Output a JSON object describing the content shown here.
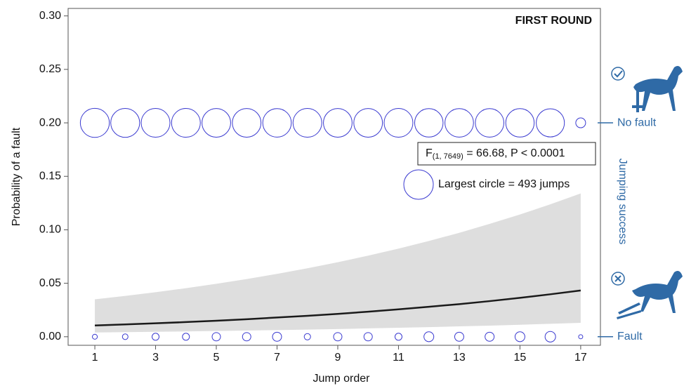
{
  "chart_data": {
    "type": "bubble-fit",
    "title": "FIRST ROUND",
    "x_label": "Jump order",
    "y_label": "Probability of a fault",
    "side_label": "Jumping success",
    "x": [
      1,
      2,
      3,
      4,
      5,
      6,
      7,
      8,
      9,
      10,
      11,
      12,
      13,
      14,
      15,
      16,
      17
    ],
    "fit": {
      "values": [
        0.0105,
        0.0115,
        0.0126,
        0.0137,
        0.015,
        0.0164,
        0.018,
        0.0196,
        0.0214,
        0.0234,
        0.0256,
        0.028,
        0.0305,
        0.0333,
        0.0364,
        0.0397,
        0.0433
      ],
      "lower": [
        0.004,
        0.0043,
        0.0046,
        0.005,
        0.0054,
        0.0058,
        0.0062,
        0.0067,
        0.0072,
        0.0078,
        0.0084,
        0.009,
        0.0097,
        0.0104,
        0.0112,
        0.0121,
        0.013
      ],
      "upper": [
        0.035,
        0.0382,
        0.0416,
        0.0454,
        0.0495,
        0.0539,
        0.0588,
        0.064,
        0.0697,
        0.0758,
        0.0824,
        0.0895,
        0.0972,
        0.1055,
        0.1143,
        0.1238,
        0.134
      ],
      "color": "#1a1a1a",
      "band_color": "#dedede"
    },
    "circles": [
      {
        "name": "No fault",
        "level": 0.2,
        "color": "#3a3ad0",
        "counts": [
          478,
          474,
          470,
          470,
          466,
          466,
          462,
          470,
          466,
          466,
          470,
          458,
          462,
          462,
          458,
          450,
          55
        ]
      },
      {
        "name": "Fault",
        "level": 0,
        "color": "#3a3ad0",
        "counts": [
          14,
          18,
          28,
          28,
          40,
          40,
          47,
          23,
          40,
          40,
          28,
          55,
          47,
          47,
          55,
          63,
          10
        ]
      }
    ],
    "largest_count": 493,
    "legend_label": "Largest circle = 493 jumps",
    "stat": {
      "main": "F",
      "sub": "(1, 7649)",
      "rest": " = 66.68, P < 0.0001"
    },
    "xlim": [
      0.12,
      17.65
    ],
    "ylim": [
      -0.008,
      0.307
    ],
    "xticks": [
      1,
      3,
      5,
      7,
      9,
      11,
      13,
      15,
      17
    ],
    "yticks": [
      {
        "value": 0,
        "label": "0.00"
      },
      {
        "value": 0.05,
        "label": "0.05"
      },
      {
        "value": 0.1,
        "label": "0.10"
      },
      {
        "value": 0.15,
        "label": "0.15"
      },
      {
        "value": 0.2,
        "label": "0.20"
      },
      {
        "value": 0.25,
        "label": "0.25"
      },
      {
        "value": 0.3,
        "label": "0.30"
      }
    ]
  }
}
